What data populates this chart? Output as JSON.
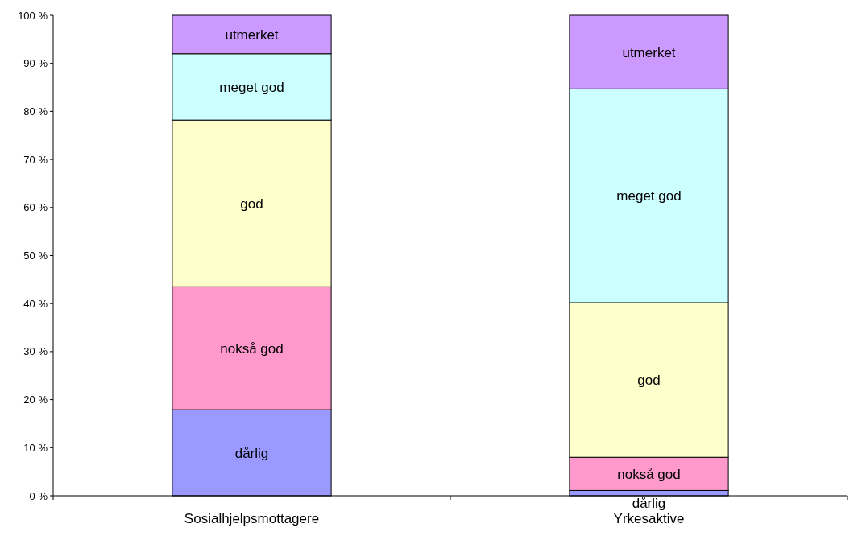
{
  "chart_data": {
    "type": "bar",
    "stacked": true,
    "categories": [
      "Sosialhjelpsmottagere",
      "Yrkesaktive"
    ],
    "series": [
      {
        "name": "dårlig",
        "color": "#9999ff",
        "values": [
          17.9,
          1.1
        ]
      },
      {
        "name": "nokså god",
        "color": "#ff99cc",
        "values": [
          25.6,
          6.9
        ]
      },
      {
        "name": "god",
        "color": "#ffffcc",
        "values": [
          34.7,
          32.2
        ]
      },
      {
        "name": "meget god",
        "color": "#ccffff",
        "values": [
          13.8,
          44.5
        ]
      },
      {
        "name": "utmerket",
        "color": "#cc99ff",
        "values": [
          8.0,
          15.3
        ]
      }
    ],
    "ylim": [
      0,
      100
    ],
    "yticks": [
      {
        "value": 0,
        "label": "0 %"
      },
      {
        "value": 10,
        "label": "10 %"
      },
      {
        "value": 20,
        "label": "20 %"
      },
      {
        "value": 30,
        "label": "30 %"
      },
      {
        "value": 40,
        "label": "40 %"
      },
      {
        "value": 50,
        "label": "50 %"
      },
      {
        "value": 60,
        "label": "60 %"
      },
      {
        "value": 70,
        "label": "70 %"
      },
      {
        "value": 80,
        "label": "80 %"
      },
      {
        "value": 90,
        "label": "90 %"
      },
      {
        "value": 100,
        "label": "100 %"
      }
    ],
    "grid": false
  }
}
